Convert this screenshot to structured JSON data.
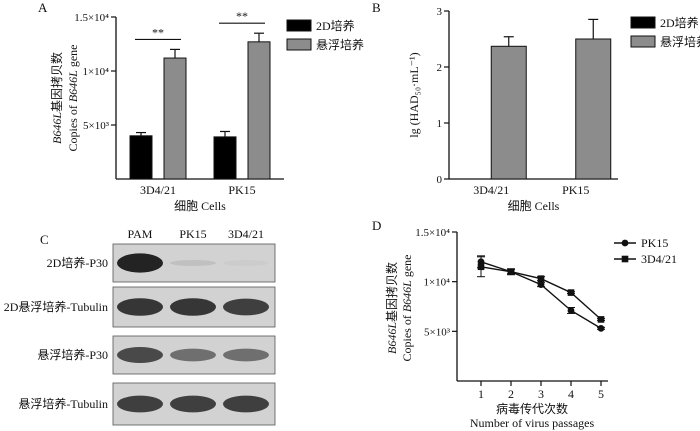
{
  "panels": {
    "A": {
      "label": "A"
    },
    "B": {
      "label": "B"
    },
    "C": {
      "label": "C",
      "lanes": [
        "PAM",
        "PK15",
        "3D4/21"
      ],
      "blots": [
        {
          "label": "2D培养-P30",
          "bands": [
            0.95,
            0.12,
            0.06
          ]
        },
        {
          "label": "2D悬浮培养-Tubulin",
          "bands": [
            0.85,
            0.85,
            0.8
          ]
        },
        {
          "label": "悬浮培养-P30",
          "bands": [
            0.75,
            0.55,
            0.55
          ]
        },
        {
          "label": "悬浮培养-Tubulin",
          "bands": [
            0.8,
            0.8,
            0.8
          ]
        }
      ]
    },
    "D": {
      "label": "D"
    }
  },
  "chart_data": [
    {
      "type": "bar",
      "panel": "A",
      "categories": [
        "3D4/21",
        "PK15"
      ],
      "series": [
        {
          "name": "2D培养",
          "color": "#000000",
          "values": [
            4000,
            3900
          ],
          "errors": [
            300,
            500
          ]
        },
        {
          "name": "悬浮培养",
          "color": "#8c8c8c",
          "values": [
            11200,
            12700
          ],
          "errors": [
            800,
            800
          ]
        }
      ],
      "significance": [
        "**",
        "**"
      ],
      "xlabel": "细胞 Cells",
      "ylabel_cn": "B646L基因拷贝数",
      "ylabel_en": "Copies of B646L gene",
      "ylim": [
        0,
        15000
      ],
      "yticks": [
        {
          "value": 5000,
          "label": "5×10³"
        },
        {
          "value": 10000,
          "label": "1×10⁴"
        },
        {
          "value": 15000,
          "label": "1.5×10⁴"
        }
      ],
      "legend": "top-right"
    },
    {
      "type": "bar",
      "panel": "B",
      "categories": [
        "3D4/21",
        "PK15"
      ],
      "series": [
        {
          "name": "2D培养",
          "color": "#000000",
          "values": [
            0,
            0
          ],
          "errors": [
            0,
            0
          ]
        },
        {
          "name": "悬浮培养",
          "color": "#8c8c8c",
          "values": [
            2.37,
            2.5
          ],
          "errors": [
            0.17,
            0.35
          ]
        }
      ],
      "xlabel": "细胞 Cells",
      "ylabel": "lg (HAD₅₀·mL⁻¹)",
      "ylim": [
        0,
        3
      ],
      "yticks": [
        {
          "value": 0,
          "label": "0"
        },
        {
          "value": 1,
          "label": "1"
        },
        {
          "value": 2,
          "label": "2"
        },
        {
          "value": 3,
          "label": "3"
        }
      ],
      "legend": "top-right"
    },
    {
      "type": "line",
      "panel": "D",
      "x": [
        1,
        2,
        3,
        4,
        5
      ],
      "series": [
        {
          "name": "PK15",
          "marker": "circle",
          "values": [
            12000,
            11000,
            9700,
            7100,
            5300
          ],
          "errors": [
            600,
            200,
            200,
            300,
            100
          ]
        },
        {
          "name": "3D4/21",
          "marker": "square",
          "values": [
            11500,
            11000,
            10300,
            8900,
            6200
          ],
          "errors": [
            1000,
            300,
            200,
            100,
            100
          ]
        }
      ],
      "xlabel_cn": "病毒传代次数",
      "xlabel_en": "Number of virus passages",
      "ylabel_cn": "B646L基因拷贝数",
      "ylabel_en": "Copies of B646L gene",
      "ylim": [
        0,
        15000
      ],
      "yticks": [
        {
          "value": 5000,
          "label": "5×10³"
        },
        {
          "value": 10000,
          "label": "1×10⁴"
        },
        {
          "value": 15000,
          "label": "1.5×10⁴"
        }
      ],
      "legend": "top-right"
    }
  ]
}
